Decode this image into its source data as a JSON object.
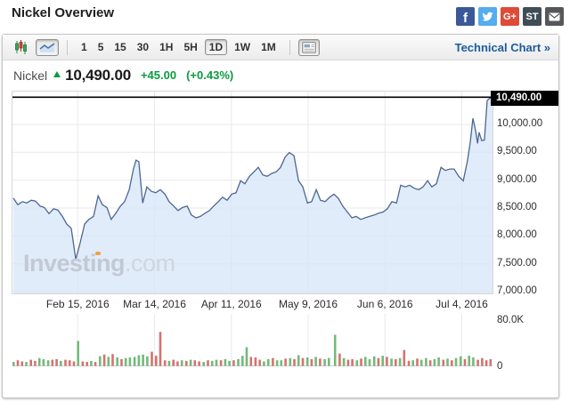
{
  "page": {
    "title": "Nickel Overview"
  },
  "social": [
    {
      "name": "facebook",
      "label": "f",
      "bg": "#3b5998"
    },
    {
      "name": "twitter",
      "label": "",
      "bg": "#55acee"
    },
    {
      "name": "googleplus",
      "label": "G+",
      "bg": "#dd4b39"
    },
    {
      "name": "stocktwits",
      "label": "ST",
      "bg": "#3f4d57"
    },
    {
      "name": "email",
      "label": "",
      "bg": "#56575b"
    }
  ],
  "toolbar": {
    "chart_types": [
      "candlestick",
      "line"
    ],
    "active_chart_type": "line",
    "intervals": [
      "1",
      "5",
      "15",
      "30",
      "1H",
      "5H",
      "1D",
      "1W",
      "1M"
    ],
    "active_interval": "1D",
    "technical_chart_label": "Technical Chart »"
  },
  "quote": {
    "name": "Nickel",
    "price": "10,490.00",
    "change": "+45.00",
    "change_percent": "(+0.43%)",
    "direction": "up",
    "up_color": "#0a9b40"
  },
  "colors": {
    "link_blue": "#1c5c9e"
  },
  "watermark": {
    "main": "Investing",
    "suffix": ".com"
  },
  "chart_data": [
    {
      "type": "area",
      "title": "Nickel price (daily)",
      "x_unit": "trading-day index (0 ≈ late Jan 2016, 125 ≈ mid Jul 2016)",
      "xlim": [
        0,
        125
      ],
      "ylim": [
        6968,
        10590
      ],
      "grid": true,
      "line_color": "#4e6692",
      "fill_color": "#d5e5f7",
      "fill_opacity": 0.75,
      "grid_color": "#e9e9e9",
      "last_price": 10490,
      "last_price_label": "10,490.00",
      "last_price_line_color": "#000000",
      "x_ticks": [
        {
          "x": 17,
          "label": "Feb 15, 2016"
        },
        {
          "x": 37,
          "label": "Mar 14, 2016"
        },
        {
          "x": 57,
          "label": "Apr 11, 2016"
        },
        {
          "x": 77,
          "label": "May 9, 2016"
        },
        {
          "x": 97,
          "label": "Jun 6, 2016"
        },
        {
          "x": 117,
          "label": "Jul 4, 2016"
        }
      ],
      "y_ticks": [
        {
          "value": 10000,
          "label": "10,000.00"
        },
        {
          "value": 9500,
          "label": "9,500.00"
        },
        {
          "value": 9000,
          "label": "9,000.00"
        },
        {
          "value": 8500,
          "label": "8,500.00"
        },
        {
          "value": 8000,
          "label": "8,000.00"
        },
        {
          "value": 7500,
          "label": "7,500.00"
        },
        {
          "value": 7000,
          "label": "7,000.00"
        }
      ],
      "points": [
        [
          0.2,
          8680
        ],
        [
          1.4,
          8560
        ],
        [
          2.6,
          8615
        ],
        [
          3.7,
          8590
        ],
        [
          4.9,
          8640
        ],
        [
          6,
          8625
        ],
        [
          7.2,
          8535
        ],
        [
          8.3,
          8510
        ],
        [
          9.5,
          8400
        ],
        [
          10.7,
          8485
        ],
        [
          11.8,
          8465
        ],
        [
          13,
          8350
        ],
        [
          14.1,
          8215
        ],
        [
          15.3,
          8135
        ],
        [
          16.5,
          7580
        ],
        [
          17.6,
          7870
        ],
        [
          18.8,
          8215
        ],
        [
          19.9,
          8295
        ],
        [
          21.1,
          8350
        ],
        [
          22.3,
          8720
        ],
        [
          23.4,
          8560
        ],
        [
          24.6,
          8510
        ],
        [
          25.7,
          8295
        ],
        [
          26.9,
          8405
        ],
        [
          28.1,
          8535
        ],
        [
          29.2,
          8615
        ],
        [
          30.4,
          8830
        ],
        [
          31.5,
          9200
        ],
        [
          32.2,
          9360
        ],
        [
          32.9,
          9330
        ],
        [
          33.9,
          8590
        ],
        [
          35,
          8880
        ],
        [
          36.2,
          8800
        ],
        [
          37.3,
          8775
        ],
        [
          38.5,
          8830
        ],
        [
          39.7,
          8750
        ],
        [
          40.8,
          8615
        ],
        [
          42,
          8535
        ],
        [
          43.1,
          8455
        ],
        [
          44.3,
          8510
        ],
        [
          45.5,
          8535
        ],
        [
          46.6,
          8375
        ],
        [
          47.8,
          8325
        ],
        [
          48.9,
          8350
        ],
        [
          50.1,
          8405
        ],
        [
          51.3,
          8455
        ],
        [
          52.4,
          8535
        ],
        [
          53.6,
          8615
        ],
        [
          54.7,
          8695
        ],
        [
          55.9,
          8640
        ],
        [
          57.1,
          8750
        ],
        [
          58.2,
          8775
        ],
        [
          59.4,
          8990
        ],
        [
          60.5,
          8935
        ],
        [
          61.7,
          9070
        ],
        [
          62.9,
          9150
        ],
        [
          64,
          9230
        ],
        [
          65.2,
          9095
        ],
        [
          66.3,
          9070
        ],
        [
          67.5,
          9120
        ],
        [
          68.7,
          9150
        ],
        [
          69.8,
          9230
        ],
        [
          71,
          9415
        ],
        [
          72.1,
          9495
        ],
        [
          73.3,
          9440
        ],
        [
          74.5,
          8990
        ],
        [
          75.6,
          8880
        ],
        [
          76.8,
          8590
        ],
        [
          77.9,
          8615
        ],
        [
          79.1,
          8830
        ],
        [
          80.2,
          8640
        ],
        [
          81.4,
          8615
        ],
        [
          82.6,
          8695
        ],
        [
          83.7,
          8750
        ],
        [
          84.9,
          8670
        ],
        [
          86,
          8535
        ],
        [
          87.2,
          8430
        ],
        [
          88.4,
          8325
        ],
        [
          89.5,
          8350
        ],
        [
          90.7,
          8295
        ],
        [
          91.8,
          8325
        ],
        [
          93,
          8350
        ],
        [
          94.2,
          8375
        ],
        [
          95.3,
          8405
        ],
        [
          96.5,
          8430
        ],
        [
          97.6,
          8485
        ],
        [
          98.8,
          8615
        ],
        [
          100,
          8590
        ],
        [
          101.1,
          8910
        ],
        [
          102.3,
          8880
        ],
        [
          103.4,
          8910
        ],
        [
          104.6,
          8855
        ],
        [
          105.8,
          8830
        ],
        [
          106.9,
          8880
        ],
        [
          108.1,
          8990
        ],
        [
          109.2,
          8880
        ],
        [
          110.4,
          8935
        ],
        [
          111.6,
          9230
        ],
        [
          112.7,
          9175
        ],
        [
          113.9,
          9200
        ],
        [
          115,
          9200
        ],
        [
          116.2,
          9070
        ],
        [
          117.4,
          8990
        ],
        [
          118.5,
          9360
        ],
        [
          119.2,
          9680
        ],
        [
          119.9,
          10110
        ],
        [
          120.6,
          9890
        ],
        [
          121.1,
          9660
        ],
        [
          121.5,
          9860
        ],
        [
          122.2,
          9710
        ],
        [
          122.9,
          9720
        ],
        [
          123.6,
          10430
        ],
        [
          124.3,
          10470
        ],
        [
          125,
          10490
        ]
      ]
    },
    {
      "type": "bar",
      "title": "Volume",
      "xlim": [
        0,
        125
      ],
      "ylim": [
        0,
        94
      ],
      "unit": "K",
      "up_color": "#74b97a",
      "down_color": "#d4736f",
      "grid_color": "#e6e9ee",
      "baseline_color": "#c8cdd5",
      "y_ticks": [
        {
          "value": 80,
          "label": "80.0K"
        },
        {
          "value": 0,
          "label": "0"
        }
      ],
      "bars": [
        [
          0.3,
          7,
          "g"
        ],
        [
          1.4,
          10,
          "r"
        ],
        [
          2.5,
          8,
          "r"
        ],
        [
          3.6,
          7,
          "g"
        ],
        [
          4.8,
          11,
          "r"
        ],
        [
          5.9,
          9,
          "r"
        ],
        [
          7,
          14,
          "g"
        ],
        [
          8.1,
          12,
          "g"
        ],
        [
          9.3,
          10,
          "g"
        ],
        [
          10.4,
          11,
          "r"
        ],
        [
          11.5,
          12,
          "r"
        ],
        [
          12.6,
          9,
          "g"
        ],
        [
          13.8,
          11,
          "r"
        ],
        [
          14.9,
          10,
          "r"
        ],
        [
          16,
          8,
          "r"
        ],
        [
          17.1,
          44,
          "g"
        ],
        [
          18.3,
          8,
          "r"
        ],
        [
          19.4,
          7,
          "r"
        ],
        [
          20.5,
          9,
          "g"
        ],
        [
          21.6,
          7,
          "r"
        ],
        [
          22.8,
          17,
          "g"
        ],
        [
          23.9,
          20,
          "r"
        ],
        [
          25,
          16,
          "g"
        ],
        [
          26.1,
          21,
          "r"
        ],
        [
          27.3,
          15,
          "g"
        ],
        [
          28.4,
          12,
          "r"
        ],
        [
          29.5,
          14,
          "g"
        ],
        [
          30.6,
          15,
          "g"
        ],
        [
          31.8,
          16,
          "g"
        ],
        [
          32.9,
          19,
          "g"
        ],
        [
          34,
          20,
          "g"
        ],
        [
          35.1,
          17,
          "g"
        ],
        [
          36.3,
          25,
          "r"
        ],
        [
          37.4,
          18,
          "r"
        ],
        [
          38.5,
          60,
          "r"
        ],
        [
          39.7,
          10,
          "r"
        ],
        [
          40.8,
          9,
          "g"
        ],
        [
          41.9,
          11,
          "r"
        ],
        [
          43,
          8,
          "r"
        ],
        [
          44.1,
          10,
          "g"
        ],
        [
          45.3,
          9,
          "r"
        ],
        [
          46.4,
          11,
          "g"
        ],
        [
          47.5,
          10,
          "r"
        ],
        [
          48.6,
          8,
          "r"
        ],
        [
          49.8,
          7,
          "g"
        ],
        [
          50.9,
          10,
          "r"
        ],
        [
          52,
          9,
          "g"
        ],
        [
          53.1,
          11,
          "g"
        ],
        [
          54.3,
          10,
          "r"
        ],
        [
          55.4,
          12,
          "g"
        ],
        [
          56.5,
          9,
          "g"
        ],
        [
          57.6,
          10,
          "r"
        ],
        [
          58.8,
          12,
          "g"
        ],
        [
          59.9,
          18,
          "g"
        ],
        [
          61,
          33,
          "g"
        ],
        [
          62.1,
          16,
          "r"
        ],
        [
          63.3,
          15,
          "r"
        ],
        [
          64.4,
          11,
          "r"
        ],
        [
          65.5,
          8,
          "g"
        ],
        [
          66.6,
          12,
          "g"
        ],
        [
          67.8,
          14,
          "r"
        ],
        [
          68.9,
          10,
          "g"
        ],
        [
          70,
          10,
          "g"
        ],
        [
          71.1,
          13,
          "r"
        ],
        [
          72.3,
          14,
          "g"
        ],
        [
          73.4,
          12,
          "r"
        ],
        [
          74.5,
          19,
          "g"
        ],
        [
          75.6,
          14,
          "r"
        ],
        [
          76.8,
          15,
          "g"
        ],
        [
          77.9,
          12,
          "r"
        ],
        [
          79,
          16,
          "g"
        ],
        [
          80.1,
          13,
          "r"
        ],
        [
          81.3,
          12,
          "g"
        ],
        [
          82.4,
          14,
          "g"
        ],
        [
          84,
          55,
          "g"
        ],
        [
          85.2,
          22,
          "r"
        ],
        [
          86.3,
          14,
          "g"
        ],
        [
          87.4,
          11,
          "r"
        ],
        [
          88.5,
          12,
          "r"
        ],
        [
          89.7,
          10,
          "g"
        ],
        [
          90.8,
          13,
          "r"
        ],
        [
          91.9,
          16,
          "g"
        ],
        [
          93,
          12,
          "g"
        ],
        [
          94.2,
          17,
          "g"
        ],
        [
          95.3,
          14,
          "r"
        ],
        [
          96.4,
          18,
          "g"
        ],
        [
          97.5,
          16,
          "r"
        ],
        [
          98.7,
          13,
          "g"
        ],
        [
          99.8,
          12,
          "r"
        ],
        [
          100.9,
          14,
          "g"
        ],
        [
          102,
          28,
          "r"
        ],
        [
          103.2,
          9,
          "r"
        ],
        [
          104.3,
          10,
          "g"
        ],
        [
          105.4,
          13,
          "r"
        ],
        [
          106.5,
          11,
          "g"
        ],
        [
          107.7,
          14,
          "g"
        ],
        [
          108.8,
          10,
          "r"
        ],
        [
          109.9,
          12,
          "g"
        ],
        [
          111,
          15,
          "g"
        ],
        [
          112.2,
          11,
          "r"
        ],
        [
          113.3,
          13,
          "g"
        ],
        [
          114.4,
          10,
          "r"
        ],
        [
          115.5,
          14,
          "g"
        ],
        [
          116.7,
          17,
          "g"
        ],
        [
          117.8,
          12,
          "r"
        ],
        [
          118.9,
          18,
          "g"
        ],
        [
          120,
          15,
          "g"
        ],
        [
          121.2,
          11,
          "r"
        ],
        [
          122.3,
          14,
          "r"
        ],
        [
          123.4,
          10,
          "r"
        ],
        [
          124.5,
          12,
          "r"
        ]
      ]
    }
  ]
}
